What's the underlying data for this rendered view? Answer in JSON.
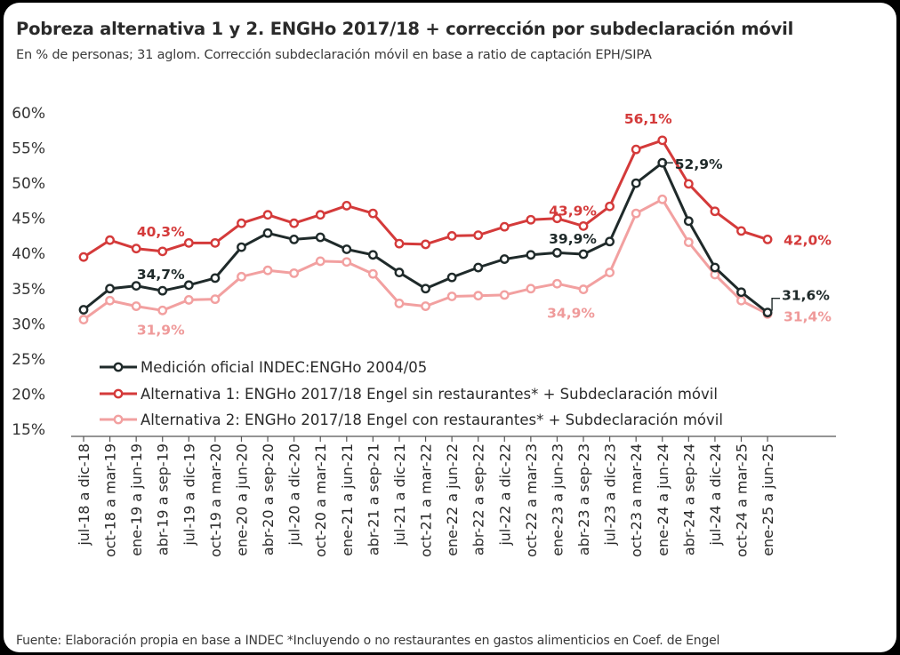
{
  "title": "Pobreza alternativa  1 y 2. ENGHo 2017/18 + corrección por subdeclaración móvil",
  "subtitle": "En % de personas; 31 aglom. Corrección subdeclaración móvil en base a ratio de captación EPH/SIPA",
  "source": "Fuente: Elaboración propia en base a INDEC *Incluyendo o no restaurantes en gastos alimenticios en Coef. de Engel",
  "chart_data": {
    "type": "line",
    "title": "Pobreza alternativa  1 y 2. ENGHo 2017/18 + corrección por subdeclaración móvil",
    "xlabel": "",
    "ylabel": "",
    "ylim": [
      15,
      60
    ],
    "y_ticks": [
      "15%",
      "20%",
      "25%",
      "30%",
      "35%",
      "40%",
      "45%",
      "50%",
      "55%",
      "60%"
    ],
    "y_tick_values": [
      15,
      20,
      25,
      30,
      35,
      40,
      45,
      50,
      55,
      60
    ],
    "grid": false,
    "legend_position": "bottom-inside",
    "categories": [
      "jul-18 a dic-18",
      "oct-18 a mar-19",
      "ene-19 a jun-19",
      "abr-19 a sep-19",
      "jul-19 a dic-19",
      "oct-19 a mar-20",
      "ene-20 a jun-20",
      "abr-20 a sep-20",
      "jul-20 a dic-20",
      "oct-20 a mar-21",
      "ene-21 a jun-21",
      "abr-21 a sep-21",
      "jul-21 a dic-21",
      "oct-21 a mar-22",
      "ene-22 a jun-22",
      "abr-22 a sep-22",
      "jul-22 a dic-22",
      "oct-22 a mar-23",
      "ene-23 a jun-23",
      "abr-23 a sep-23",
      "jul-23 a dic-23",
      "oct-23 a mar-24",
      "ene-24 a jun-24",
      "abr-24 a sep-24",
      "jul-24 a dic-24",
      "oct-24 a mar-25",
      "ene-25 a jun-25"
    ],
    "series": [
      {
        "name": "Medición oficial INDEC:ENGHo 2004/05",
        "color": "#1f2a2a",
        "values": [
          32.0,
          35.0,
          35.4,
          34.7,
          35.5,
          36.5,
          40.9,
          42.9,
          42.0,
          42.3,
          40.6,
          39.8,
          37.3,
          35.0,
          36.6,
          38.0,
          39.2,
          39.8,
          40.1,
          39.9,
          41.7,
          50.0,
          52.9,
          44.6,
          38.0,
          34.5,
          31.6
        ]
      },
      {
        "name": "Alternativa 1: ENGHo 2017/18 Engel sin restaurantes* + Subdeclaración móvil",
        "color": "#d43a3a",
        "values": [
          39.5,
          41.9,
          40.7,
          40.3,
          41.5,
          41.5,
          44.3,
          45.5,
          44.3,
          45.5,
          46.8,
          45.7,
          41.4,
          41.3,
          42.5,
          42.6,
          43.8,
          44.8,
          45.0,
          43.9,
          46.7,
          54.8,
          56.1,
          49.9,
          46.0,
          43.2,
          42.0
        ]
      },
      {
        "name": "Alternativa 2: ENGHo 2017/18 Engel con restaurantes* + Subdeclaración móvil",
        "color": "#f2a0a0",
        "values": [
          30.6,
          33.3,
          32.5,
          31.9,
          33.4,
          33.5,
          36.7,
          37.6,
          37.2,
          38.9,
          38.8,
          37.1,
          32.9,
          32.5,
          33.9,
          34.0,
          34.1,
          35.0,
          35.7,
          34.9,
          37.3,
          45.7,
          47.7,
          41.6,
          37.0,
          33.3,
          31.4
        ]
      }
    ],
    "annotations": [
      {
        "series": 0,
        "index": 3,
        "text": "34,7%"
      },
      {
        "series": 0,
        "index": 19,
        "text": "39,9%"
      },
      {
        "series": 0,
        "index": 22,
        "text": "52,9%"
      },
      {
        "series": 0,
        "index": 26,
        "text": "31,6%"
      },
      {
        "series": 1,
        "index": 3,
        "text": "40,3%"
      },
      {
        "series": 1,
        "index": 19,
        "text": "43,9%"
      },
      {
        "series": 1,
        "index": 22,
        "text": "56,1%"
      },
      {
        "series": 1,
        "index": 26,
        "text": "42,0%"
      },
      {
        "series": 2,
        "index": 3,
        "text": "31,9%"
      },
      {
        "series": 2,
        "index": 19,
        "text": "34,9%"
      },
      {
        "series": 2,
        "index": 26,
        "text": "31,4%"
      }
    ]
  }
}
